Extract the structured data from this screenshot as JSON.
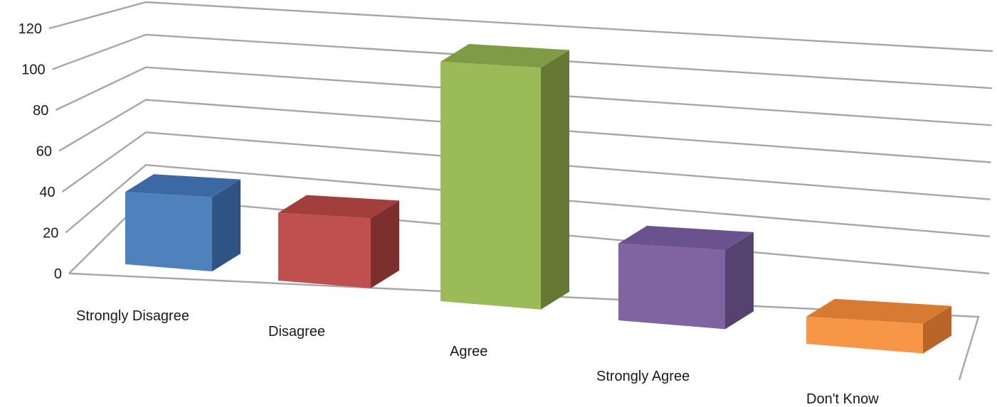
{
  "chart_data": {
    "type": "bar",
    "style": "3d-column",
    "title": "",
    "xlabel": "",
    "ylabel": "",
    "categories": [
      "Strongly Disagree",
      "Disagree",
      "Agree",
      "Strongly Agree",
      "Don't Know"
    ],
    "values": [
      32,
      30,
      106,
      34,
      12
    ],
    "ylim": [
      0,
      120
    ],
    "yticks": [
      "0",
      "20",
      "40",
      "60",
      "80",
      "100",
      "120"
    ],
    "grid": true,
    "legend": "none",
    "colors": [
      "#4f81bd",
      "#c0504d",
      "#9bbb59",
      "#8064a2",
      "#f79646"
    ],
    "side_colors": [
      "#2f5483",
      "#7d2f2d",
      "#657935",
      "#55426f",
      "#b9652a"
    ],
    "top_colors": [
      "#3c68a3",
      "#a23f3c",
      "#7f9b45",
      "#6a5290",
      "#d77a32"
    ]
  }
}
